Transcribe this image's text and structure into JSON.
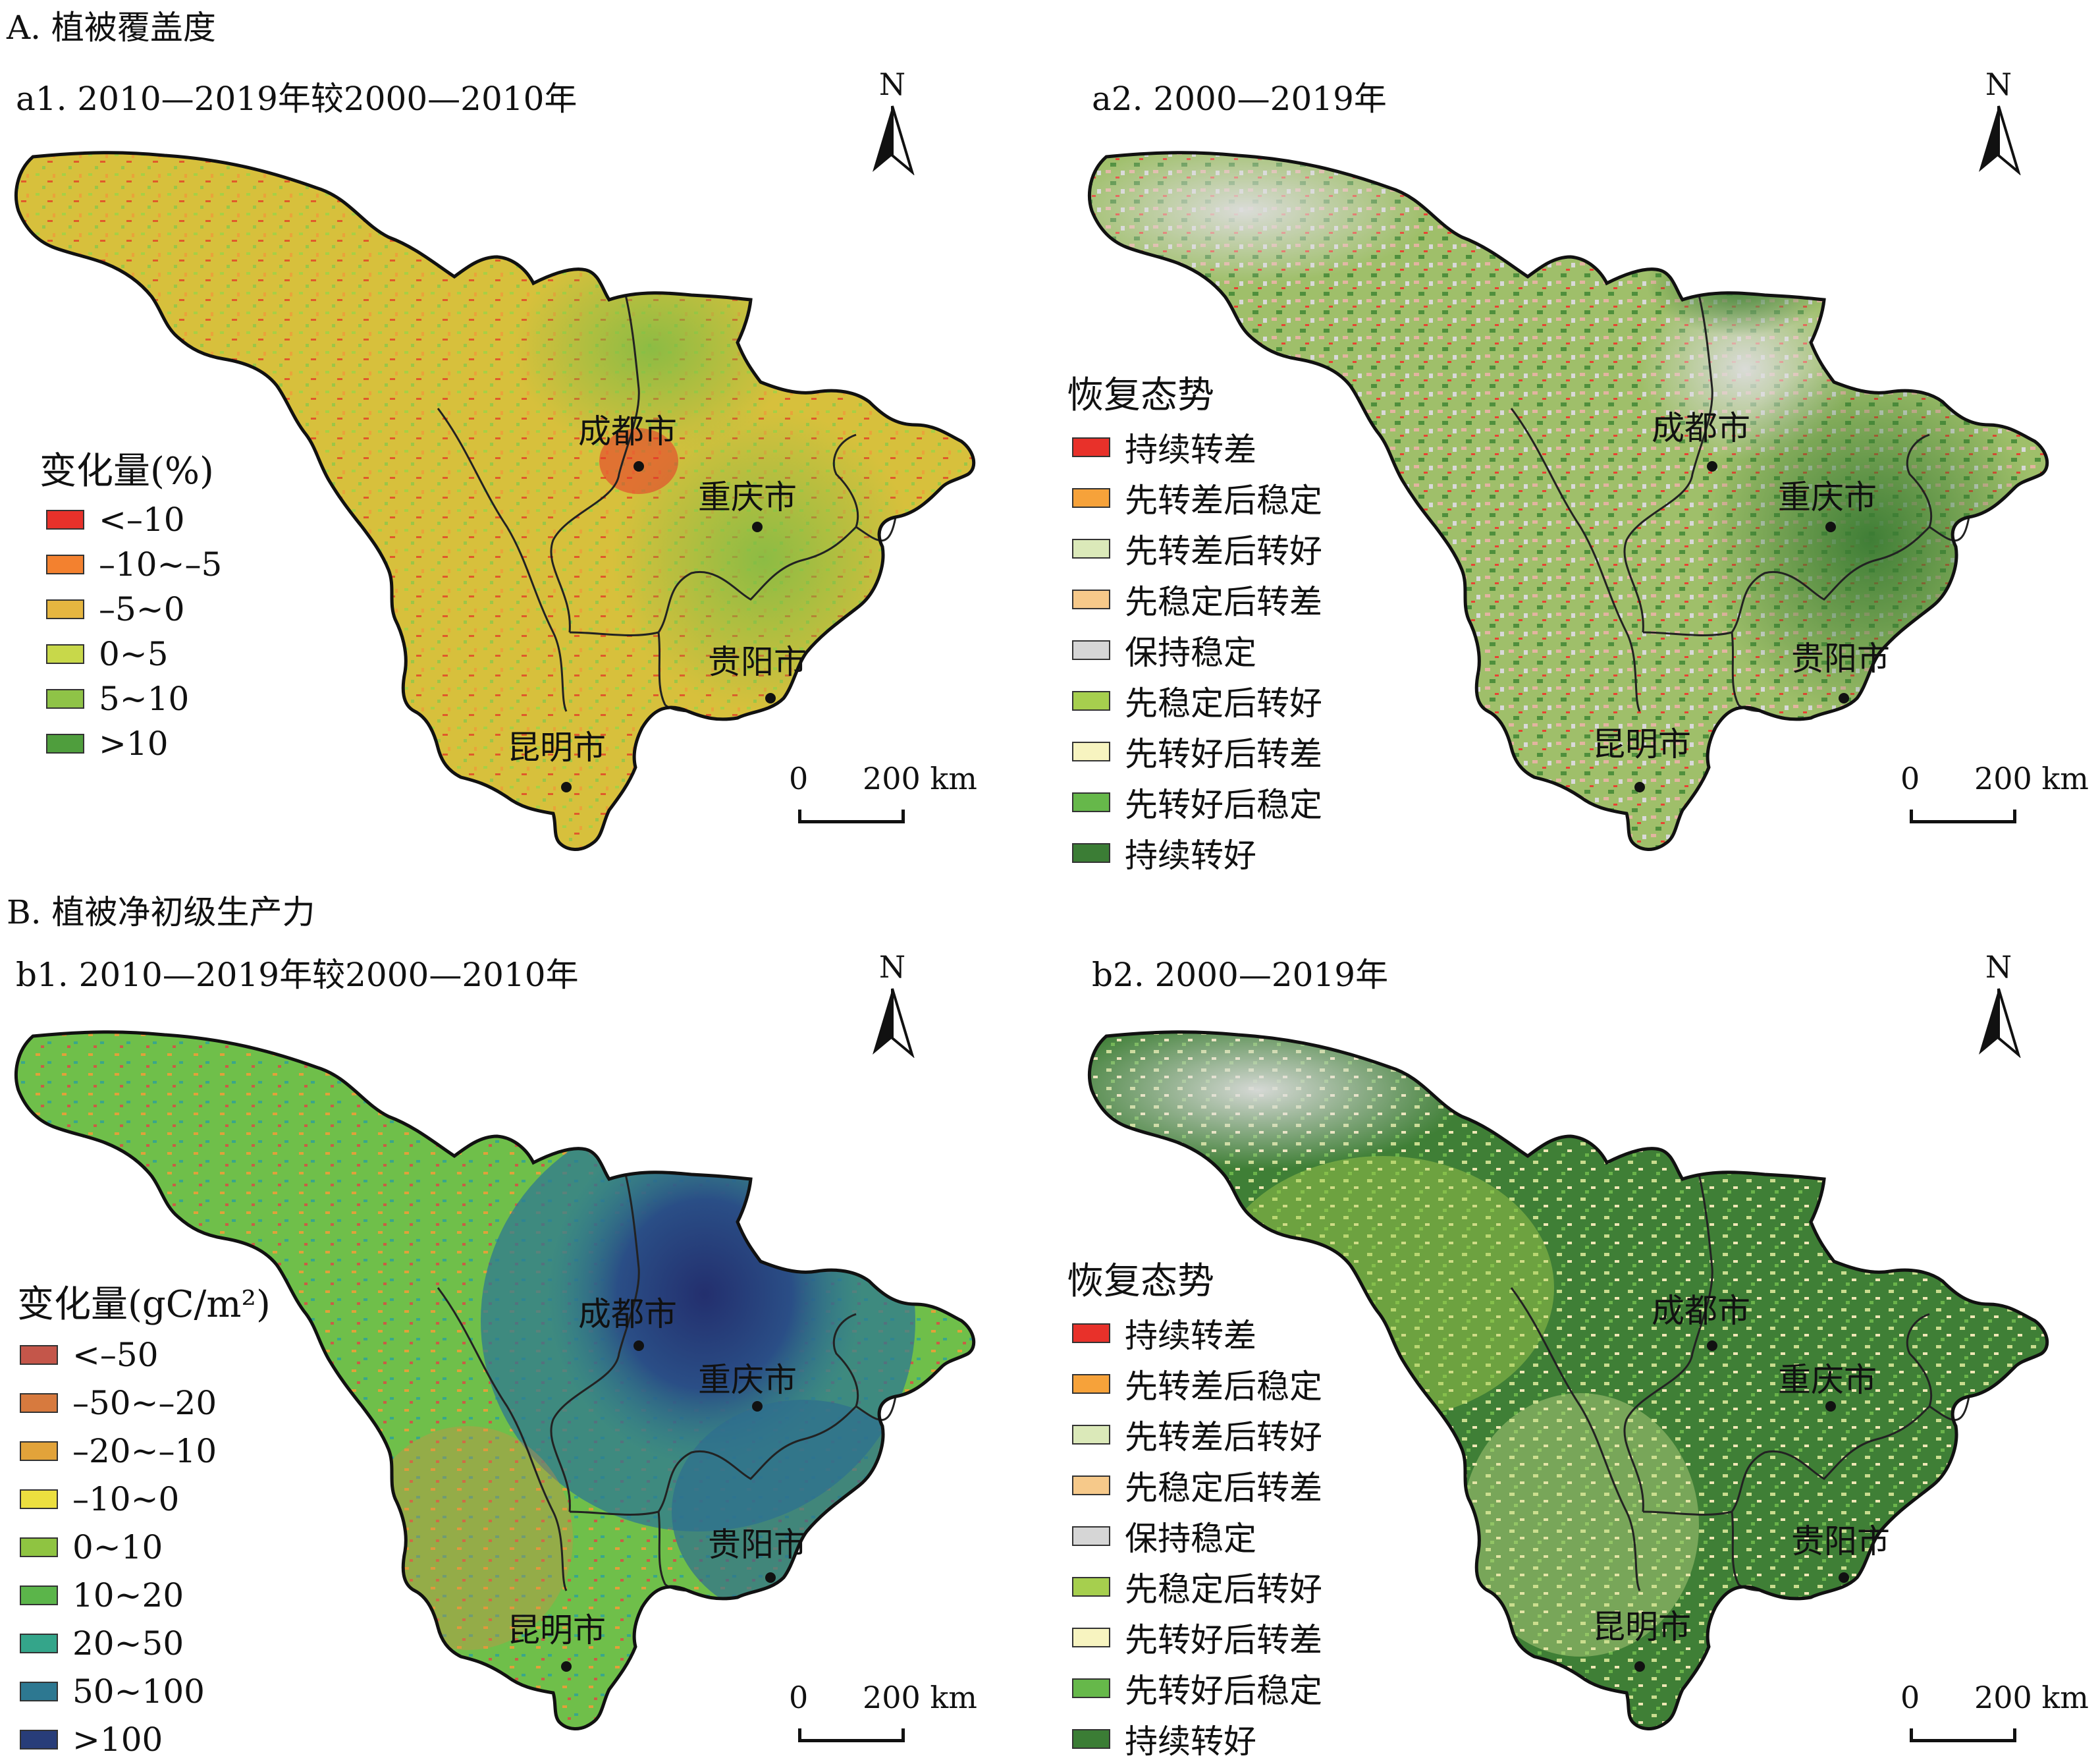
{
  "section_a": {
    "title": "A. 植被覆盖度",
    "panel_a1": {
      "title": "a1. 2010—2019年较2000—2010年",
      "legend_title": "变化量(%)",
      "legend": [
        {
          "label": "<–10",
          "color": "#e8312a"
        },
        {
          "label": "–10~–5",
          "color": "#f3812f"
        },
        {
          "label": "–5~0",
          "color": "#e6b640"
        },
        {
          "label": "0~5",
          "color": "#c8d84a"
        },
        {
          "label": "5~10",
          "color": "#8fc347"
        },
        {
          "label": ">10",
          "color": "#4f9e3d"
        }
      ],
      "cities": [
        "成都市",
        "重庆市",
        "贵阳市",
        "昆明市"
      ]
    },
    "panel_a2": {
      "title": "a2. 2000—2019年",
      "legend_title": "恢复态势",
      "legend": [
        {
          "label": "持续转差",
          "color": "#e8312a"
        },
        {
          "label": "先转差后稳定",
          "color": "#f6a23a"
        },
        {
          "label": "先转差后转好",
          "color": "#dbe9b9"
        },
        {
          "label": "先稳定后转差",
          "color": "#f6c98a"
        },
        {
          "label": "保持稳定",
          "color": "#d6d6d6"
        },
        {
          "label": "先稳定后转好",
          "color": "#a6cf4e"
        },
        {
          "label": "先转好后转差",
          "color": "#f7f4c0"
        },
        {
          "label": "先转好后稳定",
          "color": "#66b84a"
        },
        {
          "label": "持续转好",
          "color": "#3b7d35"
        }
      ],
      "cities": [
        "成都市",
        "重庆市",
        "贵阳市",
        "昆明市"
      ]
    }
  },
  "section_b": {
    "title": "B. 植被净初级生产力",
    "panel_b1": {
      "title": "b1. 2010—2019年较2000—2010年",
      "legend_title": "变化量(gC/m²)",
      "legend": [
        {
          "label": "<–50",
          "color": "#c4564a"
        },
        {
          "label": "–50~–20",
          "color": "#d77a3e"
        },
        {
          "label": "–20~–10",
          "color": "#e2a33a"
        },
        {
          "label": "–10~0",
          "color": "#ecdf3f"
        },
        {
          "label": "0~10",
          "color": "#8fc441"
        },
        {
          "label": "10~20",
          "color": "#5bb54a"
        },
        {
          "label": "20~50",
          "color": "#34a58a"
        },
        {
          "label": "50~100",
          "color": "#2d7891"
        },
        {
          "label": ">100",
          "color": "#283d79"
        }
      ],
      "cities": [
        "成都市",
        "重庆市",
        "贵阳市",
        "昆明市"
      ]
    },
    "panel_b2": {
      "title": "b2. 2000—2019年",
      "legend_title": "恢复态势",
      "legend": [
        {
          "label": "持续转差",
          "color": "#e8312a"
        },
        {
          "label": "先转差后稳定",
          "color": "#f6a23a"
        },
        {
          "label": "先转差后转好",
          "color": "#dbe9b9"
        },
        {
          "label": "先稳定后转差",
          "color": "#f6c98a"
        },
        {
          "label": "保持稳定",
          "color": "#d6d6d6"
        },
        {
          "label": "先稳定后转好",
          "color": "#a6cf4e"
        },
        {
          "label": "先转好后转差",
          "color": "#f7f4c0"
        },
        {
          "label": "先转好后稳定",
          "color": "#66b84a"
        },
        {
          "label": "持续转好",
          "color": "#3b7d35"
        }
      ],
      "cities": [
        "成都市",
        "重庆市",
        "贵阳市",
        "昆明市"
      ]
    }
  },
  "north_label": "N",
  "scale": {
    "zero": "0",
    "end": "200 km"
  }
}
